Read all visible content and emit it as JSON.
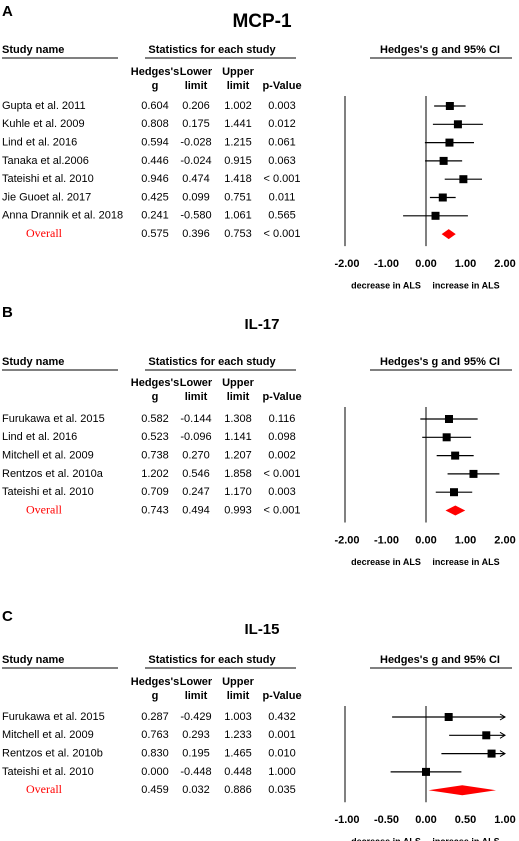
{
  "chart_data": [
    {
      "type": "forest",
      "panel": "A",
      "title": "MCP-1",
      "headers": {
        "study": "Study name",
        "stats": "Statistics for each study",
        "plot": "Hedges's g and 95% CI",
        "g": [
          "Hedges's",
          "g"
        ],
        "lower": [
          "Lower",
          "limit"
        ],
        "upper": [
          "Upper",
          "limit"
        ],
        "p": "p-Value"
      },
      "categories": [
        "Gupta et al. 2011",
        "Kuhle et al. 2009",
        "Lind et al. 2016",
        "Tanaka et al.2006",
        "Tateishi et al. 2010",
        "Jie Guoet al. 2017",
        "Anna Drannik et al. 2018",
        "Overall"
      ],
      "g": [
        0.604,
        0.808,
        0.594,
        0.446,
        0.946,
        0.425,
        0.241,
        0.575
      ],
      "g_labels": [
        "0.604",
        "0.808",
        "0.594",
        "0.446",
        "0.946",
        "0.425",
        "0.241",
        "0.575"
      ],
      "lower": [
        0.206,
        0.175,
        -0.028,
        -0.024,
        0.474,
        0.099,
        -0.58,
        0.396
      ],
      "lower_labels": [
        "0.206",
        "0.175",
        "-0.028",
        "-0.024",
        "0.474",
        "0.099",
        "-0.580",
        "0.396"
      ],
      "upper": [
        1.002,
        1.441,
        1.215,
        0.915,
        1.418,
        0.751,
        1.061,
        0.753
      ],
      "upper_labels": [
        "1.002",
        "1.441",
        "1.215",
        "0.915",
        "1.418",
        "0.751",
        "1.061",
        "0.753"
      ],
      "p_values": [
        "0.003",
        "0.012",
        "0.061",
        "0.063",
        "< 0.001",
        "0.011",
        "0.565",
        "< 0.001"
      ],
      "xlim": [
        -2,
        2
      ],
      "xticks": [
        {
          "value": -2,
          "label": "-2.00"
        },
        {
          "value": -1,
          "label": "-1.00"
        },
        {
          "value": 0,
          "label": "0.00"
        },
        {
          "value": 1,
          "label": "1.00"
        },
        {
          "value": 2,
          "label": "2.00"
        }
      ],
      "xlabels": [
        "decrease in ALS",
        "increase in ALS"
      ],
      "color": "#000000",
      "overall_color": "#ff0000"
    },
    {
      "type": "forest",
      "panel": "B",
      "title": "IL-17",
      "headers": {
        "study": "Study name",
        "stats": "Statistics for each study",
        "plot": "Hedges's g and 95% CI",
        "g": [
          "Hedges's",
          "g"
        ],
        "lower": [
          "Lower",
          "limit"
        ],
        "upper": [
          "Upper",
          "limit"
        ],
        "p": "p-Value"
      },
      "categories": [
        "Furukawa et al. 2015",
        "Lind et al. 2016",
        "Mitchell et al. 2009",
        "Rentzos et al. 2010a",
        "Tateishi et al. 2010",
        "Overall"
      ],
      "g": [
        0.582,
        0.523,
        0.738,
        1.202,
        0.709,
        0.743
      ],
      "g_labels": [
        "0.582",
        "0.523",
        "0.738",
        "1.202",
        "0.709",
        "0.743"
      ],
      "lower": [
        -0.144,
        -0.096,
        0.27,
        0.546,
        0.247,
        0.494
      ],
      "lower_labels": [
        "-0.144",
        "-0.096",
        "0.270",
        "0.546",
        "0.247",
        "0.494"
      ],
      "upper": [
        1.308,
        1.141,
        1.207,
        1.858,
        1.17,
        0.993
      ],
      "upper_labels": [
        "1.308",
        "1.141",
        "1.207",
        "1.858",
        "1.170",
        "0.993"
      ],
      "p_values": [
        "0.116",
        "0.098",
        "0.002",
        "< 0.001",
        "0.003",
        "< 0.001"
      ],
      "xlim": [
        -2,
        2
      ],
      "xticks": [
        {
          "value": -2,
          "label": "-2.00"
        },
        {
          "value": -1,
          "label": "-1.00"
        },
        {
          "value": 0,
          "label": "0.00"
        },
        {
          "value": 1,
          "label": "1.00"
        },
        {
          "value": 2,
          "label": "2.00"
        }
      ],
      "xlabels": [
        "decrease in ALS",
        "increase in ALS"
      ],
      "color": "#000000",
      "overall_color": "#ff0000"
    },
    {
      "type": "forest",
      "panel": "C",
      "title": "IL-15",
      "headers": {
        "study": "Study name",
        "stats": "Statistics for each study",
        "plot": "Hedges's g and 95% CI",
        "g": [
          "Hedges's",
          "g"
        ],
        "lower": [
          "Lower",
          "limit"
        ],
        "upper": [
          "Upper",
          "limit"
        ],
        "p": "p-Value"
      },
      "categories": [
        "Furukawa et al. 2015",
        "Mitchell et al. 2009",
        "Rentzos et al. 2010b",
        "Tateishi et al. 2010",
        "Overall"
      ],
      "g": [
        0.287,
        0.763,
        0.83,
        0,
        0.459
      ],
      "g_labels": [
        "0.287",
        "0.763",
        "0.830",
        "0.000",
        "0.459"
      ],
      "lower": [
        -0.429,
        0.293,
        0.195,
        -0.448,
        0.032
      ],
      "lower_labels": [
        "-0.429",
        "0.293",
        "0.195",
        "-0.448",
        "0.032"
      ],
      "upper": [
        1.003,
        1.233,
        1.465,
        0.448,
        0.886
      ],
      "upper_labels": [
        "1.003",
        "1.233",
        "1.465",
        "0.448",
        "0.886"
      ],
      "p_values": [
        "0.432",
        "0.001",
        "0.010",
        "1.000",
        "0.035"
      ],
      "xlim": [
        -1,
        1
      ],
      "xticks": [
        {
          "value": -1,
          "label": "-1.00"
        },
        {
          "value": -0.5,
          "label": "-0.50"
        },
        {
          "value": 0,
          "label": "0.00"
        },
        {
          "value": 0.5,
          "label": "0.50"
        },
        {
          "value": 1,
          "label": "1.00"
        }
      ],
      "xlabels": [
        "decrease in ALS",
        "increase in ALS"
      ],
      "color": "#000000",
      "overall_color": "#ff0000"
    }
  ]
}
